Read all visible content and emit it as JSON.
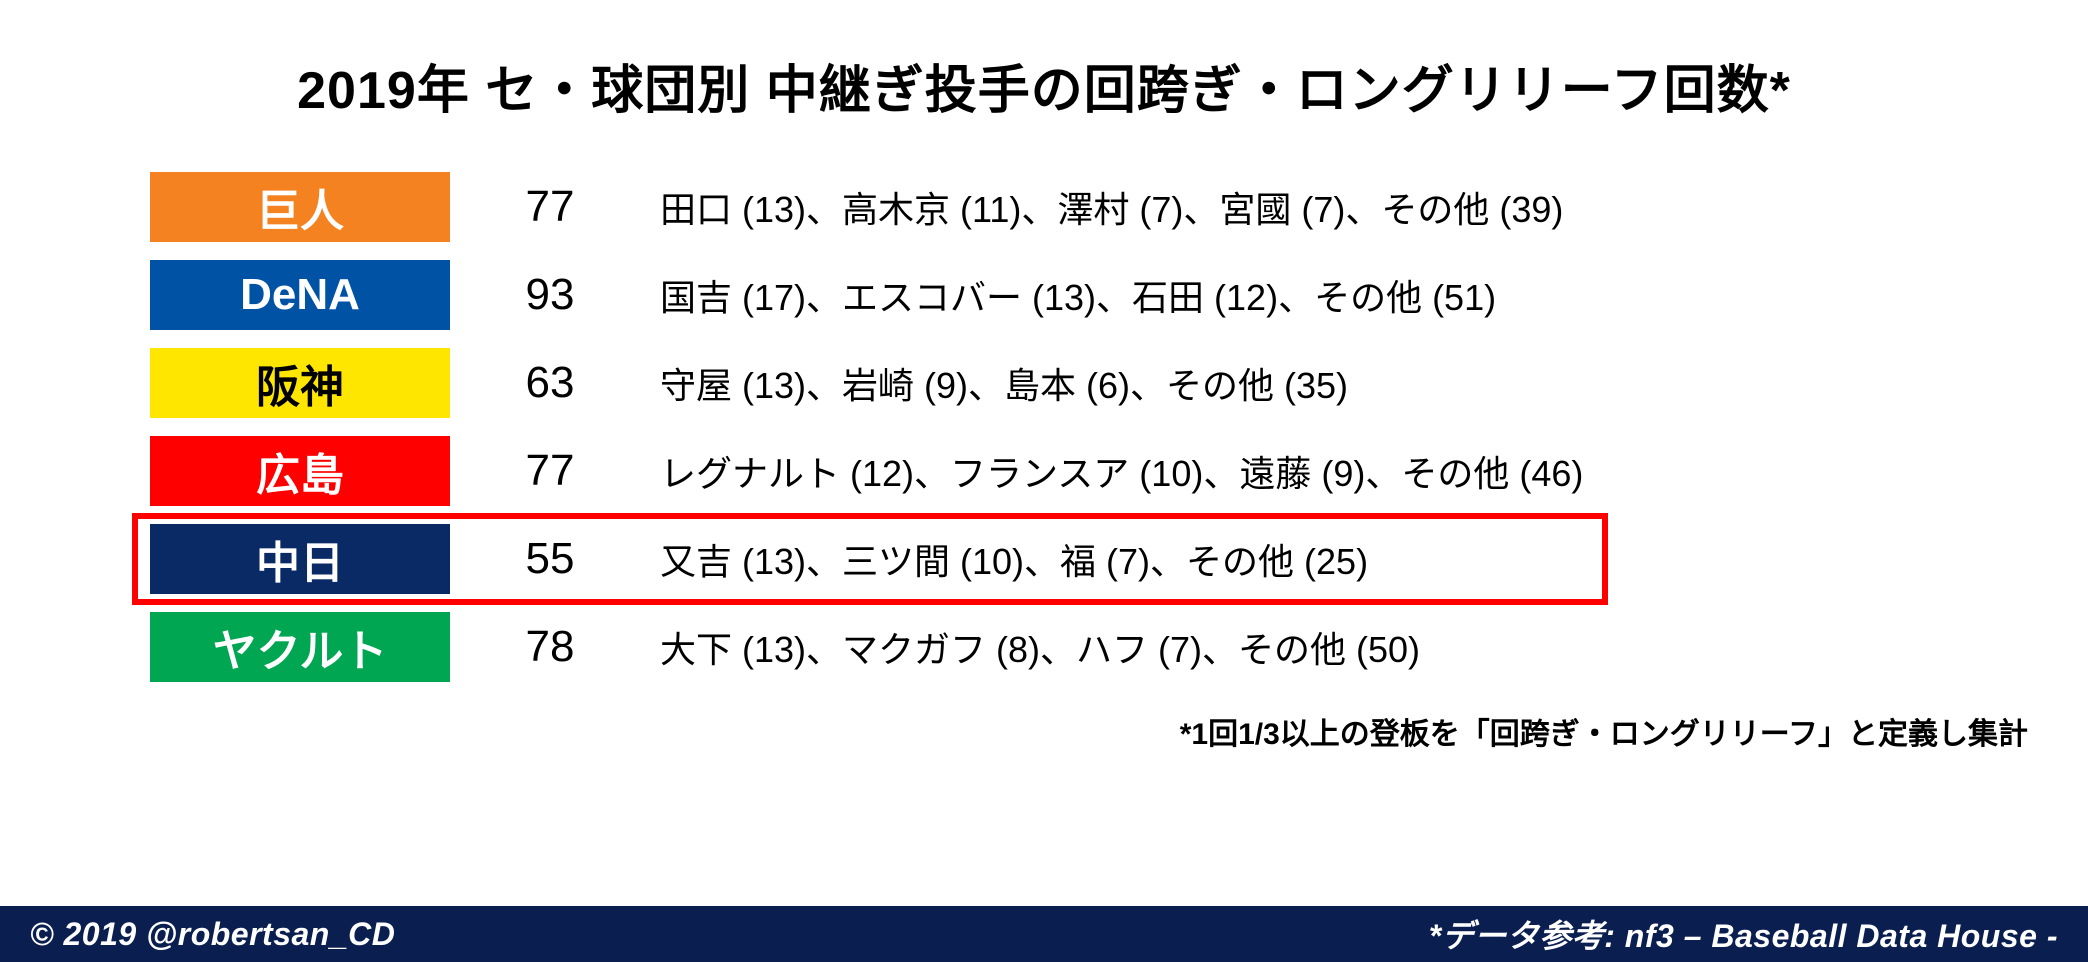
{
  "title": "2019年 セ・球団別 中継ぎ投手の回跨ぎ・ロングリリーフ回数*",
  "note": "*1回1/3以上の登板を「回跨ぎ・ロングリリーフ」と定義し集計",
  "footer": {
    "left": "© 2019 @robertsan_CD",
    "right": "*データ参考: nf3 – Baseball Data House -"
  },
  "highlight_border_color": "#ff0000",
  "footer_bg": "#0a1e50",
  "rows": [
    {
      "team": "巨人",
      "badge_bg": "#f58220",
      "badge_fg": "#ffffff",
      "total": "77",
      "detail": "田口 (13)、高木京 (11)、澤村 (7)、宮國 (7)、その他 (39)",
      "highlighted": false
    },
    {
      "team": "DeNA",
      "badge_bg": "#0052a5",
      "badge_fg": "#ffffff",
      "total": "93",
      "detail": "国吉 (17)、エスコバー (13)、石田 (12)、その他 (51)",
      "highlighted": false
    },
    {
      "team": "阪神",
      "badge_bg": "#ffe600",
      "badge_fg": "#000000",
      "total": "63",
      "detail": "守屋 (13)、岩崎 (9)、島本 (6)、その他 (35)",
      "highlighted": false
    },
    {
      "team": "広島",
      "badge_bg": "#ff0000",
      "badge_fg": "#ffffff",
      "total": "77",
      "detail": "レグナルト (12)、フランスア (10)、遠藤 (9)、その他 (46)",
      "highlighted": false
    },
    {
      "team": "中日",
      "badge_bg": "#0a2a66",
      "badge_fg": "#ffffff",
      "total": "55",
      "detail": "又吉 (13)、三ツ間 (10)、福 (7)、その他 (25)",
      "highlighted": true
    },
    {
      "team": "ヤクルト",
      "badge_bg": "#00a651",
      "badge_fg": "#ffffff",
      "total": "78",
      "detail": "大下 (13)、マクガフ (8)、ハフ (7)、その他 (50)",
      "highlighted": false
    }
  ]
}
